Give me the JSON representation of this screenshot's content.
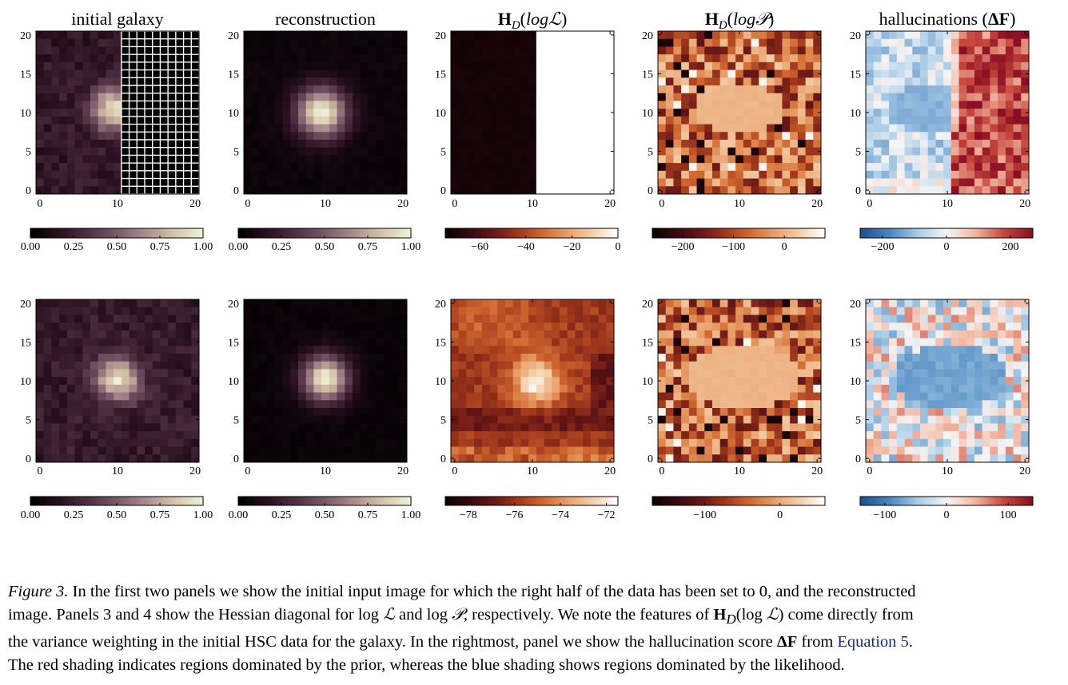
{
  "chart_data": [
    {
      "type": "heatmap",
      "title": "initial galaxy",
      "colormap": "pink-cream",
      "row": 1,
      "xticks": [
        "0",
        "10",
        "20"
      ],
      "yticks": [
        "0",
        "5",
        "10",
        "15",
        "20"
      ],
      "xlim": [
        0,
        20
      ],
      "ylim": [
        0,
        20
      ],
      "grid": "white grid over masked right half",
      "grid_cols_from": 11,
      "colorbar": {
        "ticks": [
          "0.00",
          "0.25",
          "0.50",
          "0.75",
          "1.00"
        ],
        "range": [
          0,
          1
        ]
      },
      "data": {
        "kind": "galaxy",
        "center": [
          9.5,
          10.5
        ],
        "peak": 0.95,
        "sigma": 2.0,
        "background": 0.2,
        "noise": 0.08,
        "mask_right_from": 11,
        "seed": 11
      }
    },
    {
      "type": "heatmap",
      "title": "reconstruction",
      "colormap": "pink-cream",
      "row": 1,
      "xticks": [
        "0",
        "10",
        "20"
      ],
      "yticks": [
        "0",
        "5",
        "10",
        "15",
        "20"
      ],
      "xlim": [
        0,
        20
      ],
      "ylim": [
        0,
        20
      ],
      "colorbar": {
        "ticks": [
          "0.00",
          "0.25",
          "0.50",
          "0.75",
          "1.00"
        ],
        "range": [
          0,
          1
        ]
      },
      "data": {
        "kind": "smooth",
        "center": [
          9.5,
          10
        ],
        "peak": 1.0,
        "sigma": 2.3,
        "background": 0.05,
        "seed": 12
      }
    },
    {
      "type": "heatmap",
      "title": "H_D(log L)",
      "colormap": "oranges-dark",
      "row": 1,
      "xticks": [
        "0",
        "10",
        "20"
      ],
      "yticks": [
        "0",
        "5",
        "10",
        "15",
        "20"
      ],
      "xlim": [
        0,
        20
      ],
      "ylim": [
        0,
        20
      ],
      "colorbar": {
        "ticks": [
          "−60",
          "−40",
          "−20",
          "0"
        ],
        "tick_values": [
          -60,
          -40,
          -20,
          0
        ],
        "range": [
          -75,
          0
        ]
      },
      "data": {
        "kind": "split",
        "left_value": 0.02,
        "right_value": 1.0,
        "split_col": 11,
        "seed": 13
      }
    },
    {
      "type": "heatmap",
      "title": "H_D(log P)",
      "colormap": "oranges-dark",
      "row": 1,
      "xticks": [
        "0",
        "10",
        "20"
      ],
      "yticks": [
        "0",
        "5",
        "10",
        "15",
        "20"
      ],
      "xlim": [
        0,
        20
      ],
      "ylim": [
        0,
        20
      ],
      "colorbar": {
        "ticks": [
          "−200",
          "−100",
          "0"
        ],
        "tick_values": [
          -200,
          -100,
          0
        ],
        "range": [
          -260,
          80
        ]
      },
      "data": {
        "kind": "blob-noise",
        "center": [
          10,
          10.5
        ],
        "rx": 6,
        "ry": 3.3,
        "inside": 0.78,
        "noise_mean": 0.55,
        "noise": 0.3,
        "seed": 14
      }
    },
    {
      "type": "heatmap",
      "title": "hallucinations (ΔF)",
      "colormap": "red-blue",
      "row": 1,
      "xticks": [
        "0",
        "10",
        "20"
      ],
      "yticks": [
        "0",
        "5",
        "10",
        "15",
        "20"
      ],
      "xlim": [
        0,
        20
      ],
      "ylim": [
        0,
        20
      ],
      "colorbar": {
        "ticks": [
          "−200",
          "0",
          "200"
        ],
        "tick_values": [
          -200,
          0,
          200
        ],
        "range": [
          -270,
          270
        ]
      },
      "data": {
        "kind": "halluc",
        "split_col": 11,
        "center": [
          7.5,
          10.5
        ],
        "rx": 5,
        "ry": 3.5,
        "seed": 15
      }
    },
    {
      "type": "heatmap",
      "title": "",
      "colormap": "pink-cream",
      "row": 2,
      "xticks": [
        "0",
        "10",
        "20"
      ],
      "yticks": [
        "0",
        "5",
        "10",
        "15",
        "20"
      ],
      "xlim": [
        0,
        20
      ],
      "ylim": [
        0,
        20
      ],
      "colorbar": {
        "ticks": [
          "0.00",
          "0.25",
          "0.50",
          "0.75",
          "1.00"
        ],
        "range": [
          0,
          1
        ]
      },
      "data": {
        "kind": "galaxy",
        "center": [
          10,
          10.3
        ],
        "peak": 0.95,
        "sigma": 2.0,
        "background": 0.22,
        "noise": 0.08,
        "seed": 21
      }
    },
    {
      "type": "heatmap",
      "title": "",
      "colormap": "pink-cream",
      "row": 2,
      "xticks": [
        "0",
        "10",
        "20"
      ],
      "yticks": [
        "0",
        "5",
        "10",
        "15",
        "20"
      ],
      "xlim": [
        0,
        20
      ],
      "ylim": [
        0,
        20
      ],
      "colorbar": {
        "ticks": [
          "0.00",
          "0.25",
          "0.50",
          "0.75",
          "1.00"
        ],
        "range": [
          0,
          1
        ]
      },
      "data": {
        "kind": "smooth",
        "center": [
          10,
          10.3
        ],
        "peak": 1.0,
        "sigma": 2.1,
        "background": 0.04,
        "seed": 22
      }
    },
    {
      "type": "heatmap",
      "title": "",
      "colormap": "oranges-dark",
      "row": 2,
      "xticks": [
        "0",
        "10",
        "20"
      ],
      "yticks": [
        "0",
        "5",
        "10",
        "15",
        "20"
      ],
      "xlim": [
        0,
        20
      ],
      "ylim": [
        0,
        20
      ],
      "colorbar": {
        "ticks": [
          "−78",
          "−76",
          "−74",
          "−72"
        ],
        "tick_values": [
          -78,
          -76,
          -74,
          -72
        ],
        "range": [
          -79,
          -71.5
        ]
      },
      "data": {
        "kind": "hess-like",
        "center": [
          10.5,
          10
        ],
        "seed": 23
      }
    },
    {
      "type": "heatmap",
      "title": "",
      "colormap": "oranges-dark",
      "row": 2,
      "xticks": [
        "0",
        "10",
        "20"
      ],
      "yticks": [
        "0",
        "5",
        "10",
        "15",
        "20"
      ],
      "xlim": [
        0,
        20
      ],
      "ylim": [
        0,
        20
      ],
      "colorbar": {
        "ticks": [
          "−100",
          "0"
        ],
        "tick_values": [
          -100,
          0
        ],
        "range": [
          -170,
          60
        ]
      },
      "data": {
        "kind": "blob-noise",
        "center": [
          10.5,
          10.5
        ],
        "rx": 7,
        "ry": 4.3,
        "inside": 0.78,
        "noise_mean": 0.55,
        "noise": 0.3,
        "seed": 24
      }
    },
    {
      "type": "heatmap",
      "title": "",
      "colormap": "red-blue",
      "row": 2,
      "xticks": [
        "0",
        "10",
        "20"
      ],
      "yticks": [
        "0",
        "5",
        "10",
        "15",
        "20"
      ],
      "xlim": [
        0,
        20
      ],
      "ylim": [
        0,
        20
      ],
      "colorbar": {
        "ticks": [
          "−100",
          "0",
          "100"
        ],
        "tick_values": [
          -100,
          0,
          100
        ],
        "range": [
          -140,
          140
        ]
      },
      "data": {
        "kind": "halluc2",
        "center": [
          10.5,
          10.5
        ],
        "rx": 7,
        "ry": 4.5,
        "seed": 25
      }
    }
  ],
  "caption": {
    "label": "Figure 3.",
    "line1": " In the first two panels we show the initial input image for which the right half of the data has been set to 0, and the reconstructed",
    "line2a": "image. Panels 3 and 4 show the Hessian diagonal for ",
    "log": "log",
    "L": "ℒ",
    "and": " and ",
    "P": "𝒫",
    "line2b": ", respectively. We note the features of ",
    "H": "H",
    "D": "D",
    "line2c": " come directly from",
    "line3a": "the variance weighting in the initial HSC data for the galaxy. In the rightmost, panel we show the hallucination score ",
    "deltaF": "ΔF",
    "line3b": " from ",
    "link": "Equation 5",
    "line3c": ".",
    "line4": "The red shading indicates regions dominated by the prior, whereas the blue shading shows regions dominated by the likelihood."
  },
  "colors": {
    "pink_cream": [
      "#000000",
      "#2a1020",
      "#4e3042",
      "#7a5868",
      "#a98a8c",
      "#d4c2a6",
      "#eef2d8"
    ],
    "oranges_dark": [
      "#0c0204",
      "#3a0a10",
      "#6b1818",
      "#a33a1c",
      "#d36a32",
      "#e8a06a",
      "#f3cea8",
      "#ffffff"
    ],
    "red_blue": [
      "#1f4f8f",
      "#4a86c0",
      "#a9cbe6",
      "#f5f5f5",
      "#f2b8a2",
      "#c7483f",
      "#8a0f22"
    ]
  }
}
